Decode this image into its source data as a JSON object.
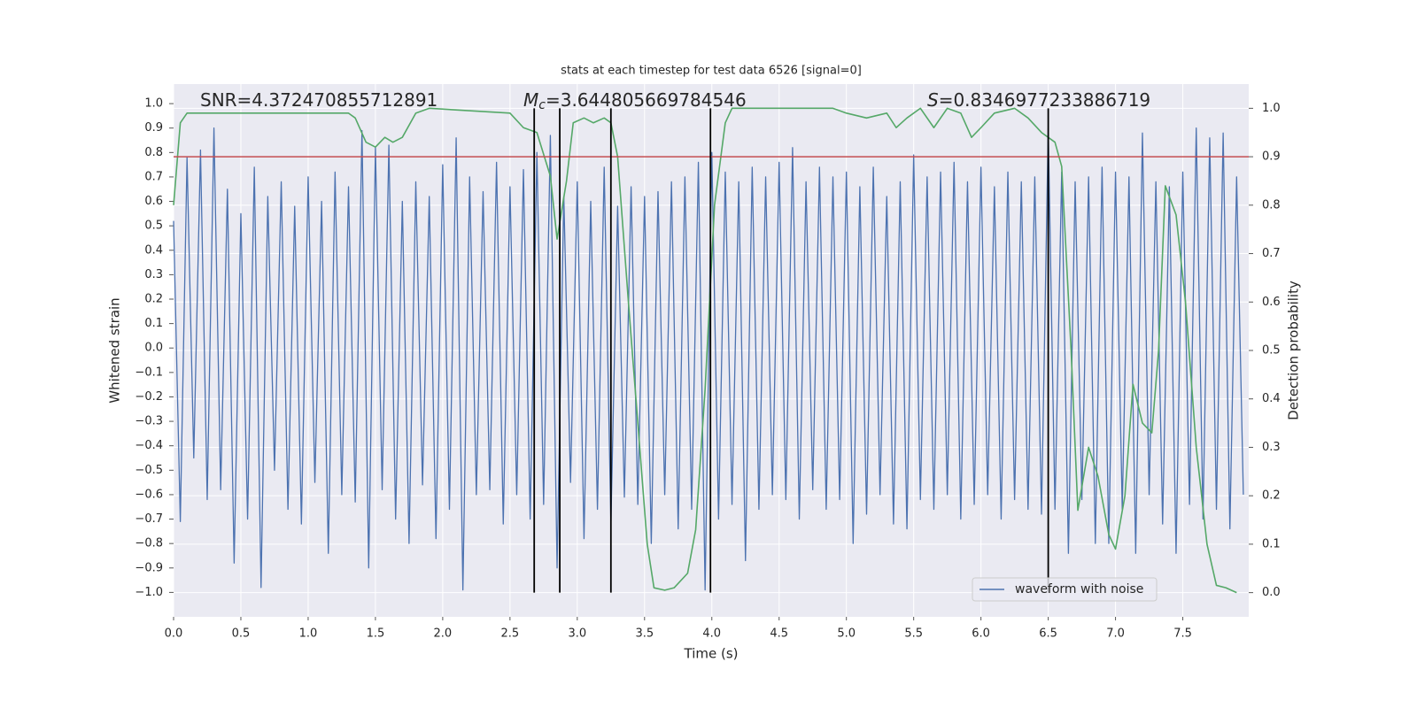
{
  "chart_data": {
    "type": "line",
    "title": "stats at each timestep for test data 6526 [signal=0]",
    "xlabel": "Time (s)",
    "ylabel": "Whitened strain",
    "y2label": "Detection probability",
    "annotations": [
      {
        "text": "SNR=4.372470855712891"
      },
      {
        "italic": "M",
        "sub": "c",
        "text": "=3.644805669784546"
      },
      {
        "italic": "S",
        "text": "=0.8346977233886719"
      }
    ],
    "xlim": [
      0,
      7.99
    ],
    "ylim": [
      -1.1,
      1.08
    ],
    "y2lim": [
      -0.05,
      1.05
    ],
    "xticks": [
      {
        "value": 0,
        "label": "0.0"
      },
      0.5,
      {
        "value": 1,
        "label": "1.0"
      },
      1.5,
      {
        "value": 2,
        "label": "2.0"
      },
      2.5,
      {
        "value": 3,
        "label": "3.0"
      },
      3.5,
      {
        "value": 4,
        "label": "4.0"
      },
      4.5,
      {
        "value": 5,
        "label": "5.0"
      },
      5.5,
      {
        "value": 6,
        "label": "6.0"
      },
      6.5,
      {
        "value": 7,
        "label": "7.0"
      },
      7.5
    ],
    "yticks": [
      {
        "value": -1,
        "label": "−1.0"
      },
      {
        "value": -0.9,
        "label": "−0.9"
      },
      {
        "value": -0.8,
        "label": "−0.8"
      },
      {
        "value": -0.7,
        "label": "−0.7"
      },
      {
        "value": -0.6,
        "label": "−0.6"
      },
      {
        "value": -0.5,
        "label": "−0.5"
      },
      {
        "value": -0.4,
        "label": "−0.4"
      },
      {
        "value": -0.3,
        "label": "−0.3"
      },
      {
        "value": -0.2,
        "label": "−0.2"
      },
      {
        "value": -0.1,
        "label": "−0.1"
      },
      {
        "value": 0,
        "label": "0.0"
      },
      0.1,
      0.2,
      0.3,
      0.4,
      0.5,
      0.6,
      0.7,
      0.8,
      0.9,
      {
        "value": 1,
        "label": "1.0"
      }
    ],
    "y2ticks": [
      {
        "value": 0,
        "label": "0.0"
      },
      0.1,
      0.2,
      0.3,
      0.4,
      0.5,
      0.6,
      0.7,
      0.8,
      0.9,
      {
        "value": 1,
        "label": "1.0"
      }
    ],
    "grid": {
      "x": true,
      "y2": true
    },
    "legend": "lower right",
    "series": [
      {
        "name": "waveform with noise",
        "color": "#4c72b0",
        "x": [
          0,
          0.05,
          0.1,
          0.15,
          0.2,
          0.25,
          0.3,
          0.35,
          0.4,
          0.45,
          0.5,
          0.55,
          0.6,
          0.65,
          0.7,
          0.75,
          0.8,
          0.85,
          0.9,
          0.95,
          1,
          1.05,
          1.1,
          1.15,
          1.2,
          1.25,
          1.3,
          1.35,
          1.4,
          1.45,
          1.5,
          1.55,
          1.6,
          1.65,
          1.7,
          1.75,
          1.8,
          1.85,
          1.9,
          1.95,
          2,
          2.05,
          2.1,
          2.15,
          2.2,
          2.25,
          2.3,
          2.35,
          2.4,
          2.45,
          2.5,
          2.55,
          2.6,
          2.65,
          2.7,
          2.75,
          2.8,
          2.85,
          2.9,
          2.95,
          3,
          3.05,
          3.1,
          3.15,
          3.2,
          3.25,
          3.3,
          3.35,
          3.4,
          3.45,
          3.5,
          3.55,
          3.6,
          3.65,
          3.7,
          3.75,
          3.8,
          3.85,
          3.9,
          3.95,
          4,
          4.05,
          4.1,
          4.15,
          4.2,
          4.25,
          4.3,
          4.35,
          4.4,
          4.45,
          4.5,
          4.55,
          4.6,
          4.65,
          4.7,
          4.75,
          4.8,
          4.85,
          4.9,
          4.95,
          5,
          5.05,
          5.1,
          5.15,
          5.2,
          5.25,
          5.3,
          5.35,
          5.4,
          5.45,
          5.5,
          5.55,
          5.6,
          5.65,
          5.7,
          5.75,
          5.8,
          5.85,
          5.9,
          5.95,
          6,
          6.05,
          6.1,
          6.15,
          6.2,
          6.25,
          6.3,
          6.35,
          6.4,
          6.45,
          6.5,
          6.55,
          6.6,
          6.65,
          6.7,
          6.75,
          6.8,
          6.85,
          6.9,
          6.95,
          7,
          7.05,
          7.1,
          7.15,
          7.2,
          7.25,
          7.3,
          7.35,
          7.4,
          7.45,
          7.5,
          7.55,
          7.6,
          7.65,
          7.7,
          7.75,
          7.8,
          7.85,
          7.9,
          7.95
        ],
        "values": [
          0.52,
          -0.71,
          0.78,
          -0.45,
          0.81,
          -0.62,
          0.9,
          -0.58,
          0.65,
          -0.88,
          0.55,
          -0.7,
          0.74,
          -0.98,
          0.62,
          -0.5,
          0.68,
          -0.66,
          0.58,
          -0.72,
          0.7,
          -0.55,
          0.6,
          -0.84,
          0.72,
          -0.6,
          0.66,
          -0.63,
          0.89,
          -0.9,
          0.82,
          -0.58,
          0.83,
          -0.7,
          0.6,
          -0.8,
          0.68,
          -0.56,
          0.62,
          -0.78,
          0.75,
          -0.66,
          0.86,
          -0.99,
          0.7,
          -0.6,
          0.64,
          -0.58,
          0.76,
          -0.72,
          0.66,
          -0.6,
          0.73,
          -0.7,
          0.8,
          -0.64,
          0.87,
          -0.9,
          0.62,
          -0.55,
          0.68,
          -0.78,
          0.6,
          -0.66,
          0.74,
          -0.72,
          0.58,
          -0.61,
          0.66,
          -0.64,
          0.62,
          -0.8,
          0.64,
          -0.6,
          0.68,
          -0.74,
          0.7,
          -0.66,
          0.76,
          -0.99,
          0.8,
          -0.7,
          0.72,
          -0.64,
          0.68,
          -0.87,
          0.74,
          -0.66,
          0.7,
          -0.6,
          0.76,
          -0.62,
          0.82,
          -0.7,
          0.68,
          -0.58,
          0.74,
          -0.66,
          0.7,
          -0.62,
          0.72,
          -0.8,
          0.66,
          -0.68,
          0.74,
          -0.6,
          0.62,
          -0.72,
          0.68,
          -0.74,
          0.79,
          -0.62,
          0.7,
          -0.66,
          0.72,
          -0.6,
          0.76,
          -0.7,
          0.68,
          -0.64,
          0.74,
          -0.6,
          0.66,
          -0.7,
          0.72,
          -0.62,
          0.68,
          -0.66,
          0.7,
          -0.68,
          0.9,
          -0.66,
          0.72,
          -0.84,
          0.68,
          -0.62,
          0.7,
          -0.8,
          0.74,
          -0.8,
          0.72,
          -0.66,
          0.7,
          -0.84,
          0.88,
          -0.6,
          0.68,
          -0.72,
          0.66,
          -0.84,
          0.72,
          -0.64,
          0.9,
          -0.7,
          0.86,
          -0.66,
          0.88,
          -0.74,
          0.7,
          -0.6
        ]
      },
      {
        "color": "#55a868",
        "axis": "y2",
        "x": [
          0,
          0.05,
          0.1,
          0.2,
          1.3,
          1.35,
          1.43,
          1.5,
          1.57,
          1.63,
          1.7,
          1.8,
          1.9,
          2.5,
          2.6,
          2.7,
          2.8,
          2.85,
          2.92,
          2.97,
          3.05,
          3.12,
          3.2,
          3.25,
          3.3,
          3.38,
          3.45,
          3.52,
          3.57,
          3.65,
          3.72,
          3.82,
          3.88,
          3.95,
          4.02,
          4.1,
          4.15,
          4.9,
          5,
          5.15,
          5.3,
          5.37,
          5.45,
          5.55,
          5.65,
          5.75,
          5.85,
          5.93,
          6,
          6.1,
          6.25,
          6.35,
          6.45,
          6.55,
          6.6,
          6.67,
          6.72,
          6.8,
          6.87,
          6.95,
          7,
          7.07,
          7.13,
          7.2,
          7.27,
          7.32,
          7.37,
          7.45,
          7.52,
          7.6,
          7.68,
          7.75,
          7.82,
          7.9
        ],
        "values": [
          0.8,
          0.97,
          0.99,
          0.99,
          0.99,
          0.98,
          0.93,
          0.92,
          0.94,
          0.93,
          0.94,
          0.99,
          1,
          0.99,
          0.96,
          0.95,
          0.86,
          0.73,
          0.85,
          0.97,
          0.98,
          0.97,
          0.98,
          0.97,
          0.9,
          0.6,
          0.35,
          0.1,
          0.01,
          0.005,
          0.01,
          0.04,
          0.13,
          0.42,
          0.8,
          0.97,
          1,
          1,
          0.99,
          0.98,
          0.99,
          0.96,
          0.98,
          1,
          0.96,
          1,
          0.99,
          0.94,
          0.96,
          0.99,
          1,
          0.98,
          0.95,
          0.93,
          0.88,
          0.5,
          0.17,
          0.3,
          0.24,
          0.12,
          0.09,
          0.2,
          0.43,
          0.35,
          0.33,
          0.5,
          0.84,
          0.78,
          0.6,
          0.3,
          0.1,
          0.015,
          0.01,
          0
        ]
      }
    ],
    "hlines": [
      {
        "y": 0.9,
        "axis": "y2",
        "color": "#c44e52"
      }
    ],
    "vlines": {
      "x": [
        2.68,
        2.87,
        3.25,
        3.99,
        6.5
      ],
      "y2range": [
        0,
        1
      ],
      "color": "#000000"
    }
  }
}
